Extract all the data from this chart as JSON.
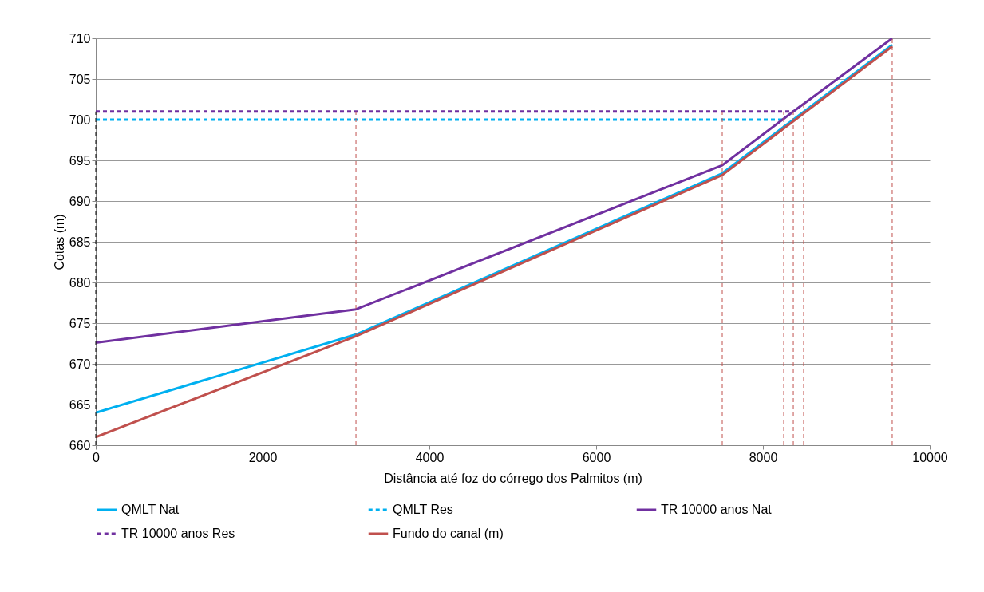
{
  "chart_data": {
    "type": "line",
    "xlabel": "Distância até foz do córrego dos Palmitos (m)",
    "ylabel": "Cotas (m)",
    "xlim": [
      0,
      10000
    ],
    "xticks": [
      0,
      2000,
      4000,
      6000,
      8000,
      10000
    ],
    "ylim": [
      660,
      710
    ],
    "yticks": [
      660,
      665,
      670,
      675,
      680,
      685,
      690,
      695,
      700,
      705,
      710
    ],
    "grid": "y",
    "legend": "bottom",
    "series": [
      {
        "name": "QMLT Nat",
        "color": "#00b0f0",
        "line_style": "solid",
        "x": [
          0,
          3120,
          7512,
          9550
        ],
        "values": [
          664,
          673.6,
          693.4,
          709.2
        ]
      },
      {
        "name": "QMLT Res",
        "color": "#00b0f0",
        "line_style": "dashed",
        "x": [
          0,
          8249
        ],
        "values": [
          700,
          700
        ]
      },
      {
        "name": "TR 10000 anos Nat",
        "color": "#7030a0",
        "line_style": "solid",
        "x": [
          0,
          3120,
          7512,
          8364,
          9550
        ],
        "values": [
          672.6,
          676.7,
          694.4,
          701,
          710
        ]
      },
      {
        "name": "TR 10000 anos Res",
        "color": "#7030a0",
        "line_style": "dashed",
        "x": [
          0,
          8364
        ],
        "values": [
          701,
          701
        ]
      },
      {
        "name": "Fundo do canal (m)",
        "color": "#c0504d",
        "line_style": "solid",
        "x": [
          0,
          3120,
          7512,
          9550
        ],
        "values": [
          661,
          673.4,
          693.2,
          709
        ]
      }
    ],
    "ref_lines": [
      {
        "axis": "x",
        "value": 0,
        "color": "#000000",
        "line_style": "dashed"
      },
      {
        "axis": "x",
        "value": 3120,
        "color": "#c0504d",
        "line_style": "dashed"
      },
      {
        "axis": "x",
        "value": 7512,
        "color": "#c0504d",
        "line_style": "dashed"
      },
      {
        "axis": "x",
        "value": 8249,
        "color": "#c0504d",
        "line_style": "dashed"
      },
      {
        "axis": "x",
        "value": 8364,
        "color": "#c0504d",
        "line_style": "dashed"
      },
      {
        "axis": "x",
        "value": 8488,
        "color": "#c0504d",
        "line_style": "dashed"
      },
      {
        "axis": "x",
        "value": 9550,
        "color": "#c0504d",
        "line_style": "dashed"
      }
    ]
  }
}
